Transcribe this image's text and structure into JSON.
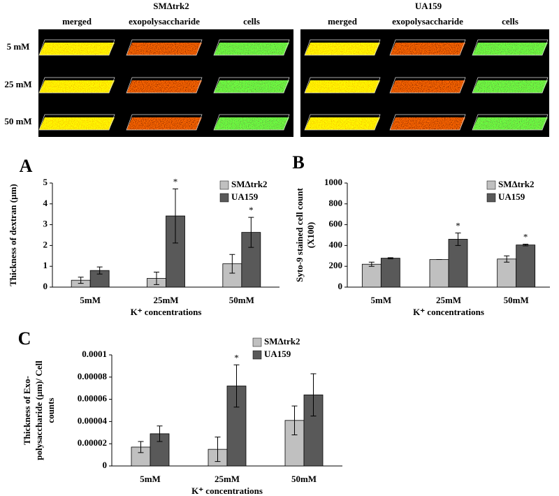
{
  "image_panel": {
    "groups": [
      {
        "title": "SMΔtrk2",
        "columns": [
          "merged",
          "exopolysaccharide",
          "cells"
        ]
      },
      {
        "title": "UA159",
        "columns": [
          "merged",
          "exopolysaccharide",
          "cells"
        ]
      }
    ],
    "rows": [
      "5 mM",
      "25 mM",
      "50 mM"
    ]
  },
  "chart_data": [
    {
      "type": "bar",
      "panel_label": "A",
      "ylabel": [
        "Thickness of dextran (µm)"
      ],
      "xlabel": "K⁺ concentrations",
      "categories": [
        "5mM",
        "25mM",
        "50mM"
      ],
      "series": [
        {
          "name": "SMΔtrk2",
          "color": "#c0c0c0",
          "values": [
            0.33,
            0.42,
            1.12
          ],
          "errors": [
            0.15,
            0.3,
            0.45
          ]
        },
        {
          "name": "UA159",
          "color": "#595959",
          "values": [
            0.8,
            3.42,
            2.63
          ],
          "errors": [
            0.17,
            1.3,
            0.72
          ],
          "significance": [
            null,
            "*",
            "*"
          ]
        }
      ],
      "ylim": [
        0,
        5
      ],
      "yticks": [
        0,
        1,
        2,
        3,
        4,
        5
      ],
      "legend": "top-right"
    },
    {
      "type": "bar",
      "panel_label": "B",
      "ylabel": [
        "Syto-9 stained cell count",
        "(X100)"
      ],
      "xlabel": "K⁺ concentrations",
      "categories": [
        "5mM",
        "25mM",
        "50mM"
      ],
      "series": [
        {
          "name": "SMΔtrk2",
          "color": "#c0c0c0",
          "values": [
            220,
            265,
            270
          ],
          "errors": [
            20,
            0,
            30
          ]
        },
        {
          "name": "UA159",
          "color": "#595959",
          "values": [
            278,
            460,
            405
          ],
          "errors": [
            5,
            60,
            8
          ],
          "significance": [
            null,
            "*",
            "*"
          ]
        }
      ],
      "ylim": [
        0,
        1000
      ],
      "yticks": [
        0,
        200,
        400,
        600,
        800,
        1000
      ],
      "legend": "top-right"
    },
    {
      "type": "bar",
      "panel_label": "C",
      "ylabel": [
        "Thickness of Exo-",
        "polysaccharide (µm)/ Cell",
        "counts"
      ],
      "xlabel": "K⁺ concentrations",
      "categories": [
        "5mM",
        "25mM",
        "50mM"
      ],
      "series": [
        {
          "name": "SMΔtrk2",
          "color": "#c0c0c0",
          "values": [
            1.7e-05,
            1.5e-05,
            4.1e-05
          ],
          "errors": [
            5e-06,
            1.1e-05,
            1.3e-05
          ]
        },
        {
          "name": "UA159",
          "color": "#595959",
          "values": [
            2.9e-05,
            7.2e-05,
            6.4e-05
          ],
          "errors": [
            7e-06,
            1.9e-05,
            1.9e-05
          ],
          "significance": [
            null,
            "*",
            null
          ]
        }
      ],
      "ylim": [
        0,
        0.0001
      ],
      "yticks": [
        0,
        2e-05,
        4e-05,
        6e-05,
        8e-05,
        0.0001
      ],
      "legend": "top-right"
    }
  ]
}
